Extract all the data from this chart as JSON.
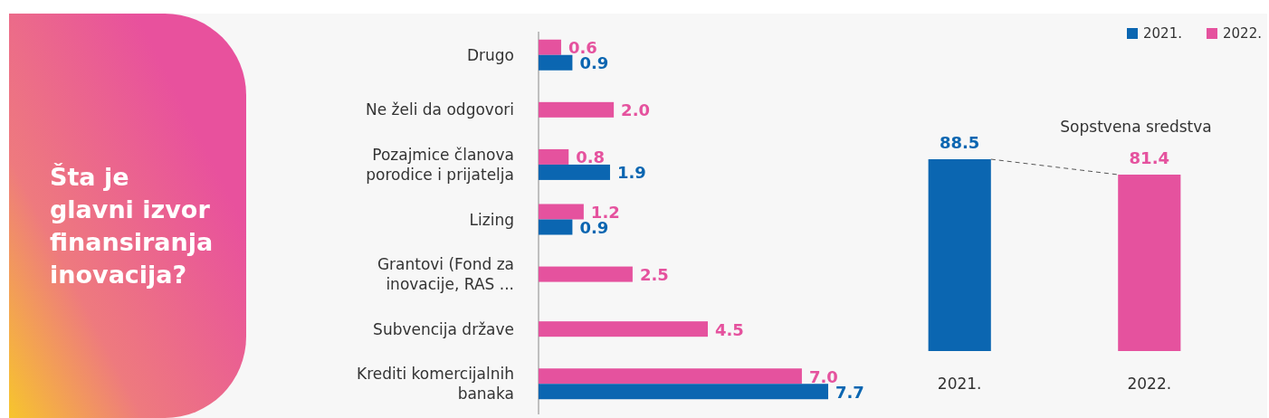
{
  "chart_data": [
    {
      "type": "bar",
      "orientation": "horizontal",
      "title": "Šta je glavni izvor finansiranja inovacija?",
      "categories": [
        "Drugo",
        "Ne želi da odgovori",
        "Pozajmice članova porodice i prijatelja",
        "Lizing",
        "Grantovi (Fond za inovacije, RAS ...",
        "Subvencija države",
        "Krediti komercijalnih banaka"
      ],
      "series": [
        {
          "name": "2022.",
          "color": "#e5529e",
          "values": [
            0.6,
            2.0,
            0.8,
            1.2,
            2.5,
            4.5,
            7.0
          ],
          "value_labels": [
            "0.6",
            "2.0",
            "0.8",
            "1.2",
            "2.5",
            "4.5",
            "7.0"
          ]
        },
        {
          "name": "2021.",
          "color": "#0b66b1",
          "values": [
            0.9,
            null,
            1.9,
            0.9,
            null,
            null,
            7.7
          ],
          "value_labels": [
            "0.9",
            null,
            "1.9",
            "0.9",
            null,
            null,
            "7.7"
          ]
        }
      ],
      "tick_labels": "y",
      "legend": "top right"
    },
    {
      "type": "bar",
      "title": "Sopstvena sredstva",
      "categories": [
        "2021.",
        "2022."
      ],
      "values": [
        88.5,
        81.4
      ],
      "colors": [
        "#0b66b1",
        "#e5529e"
      ],
      "data_labels": true,
      "tick_labels": "x"
    }
  ]
}
